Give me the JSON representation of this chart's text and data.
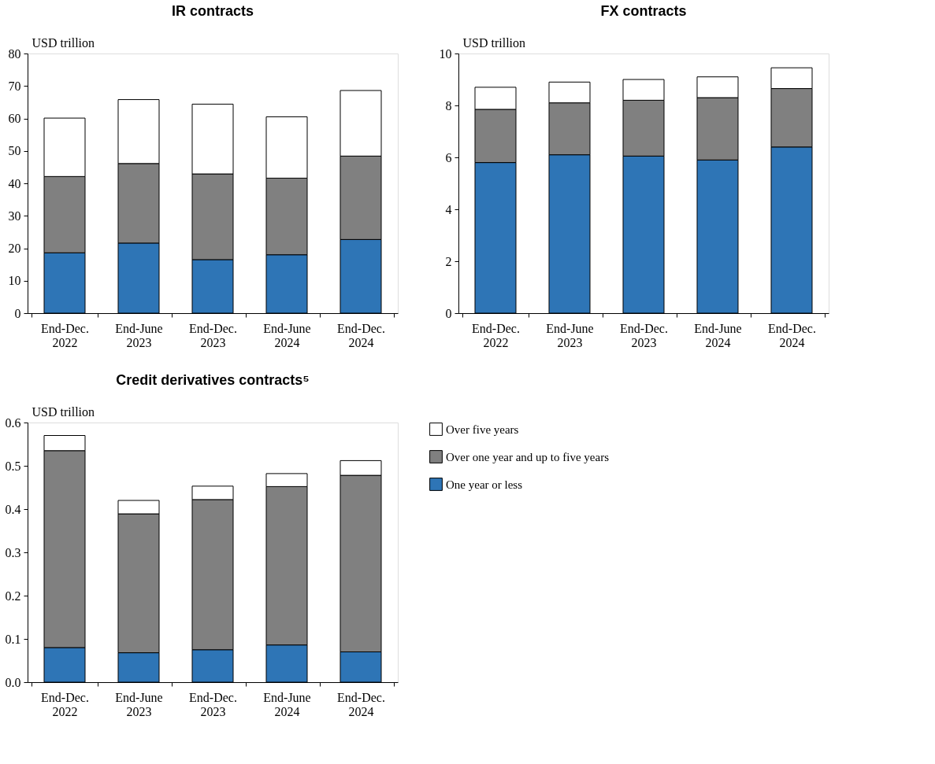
{
  "chart_data": [
    {
      "type": "bar",
      "title": "IR contracts",
      "ylabel": "USD trillion",
      "stacked": true,
      "categories": [
        "End-Dec. 2022",
        "End-June 2023",
        "End-Dec. 2023",
        "End-June 2024",
        "End-Dec. 2024"
      ],
      "ylim": [
        0,
        80
      ],
      "yticks": [
        0,
        10,
        20,
        30,
        40,
        50,
        60,
        70,
        80
      ],
      "series": [
        {
          "color": "#2e75b6",
          "values": [
            18.6,
            21.6,
            16.5,
            18.0,
            22.7
          ]
        },
        {
          "color": "#808080",
          "values": [
            23.5,
            24.5,
            26.4,
            23.6,
            25.7
          ]
        },
        {
          "color": "#ffffff",
          "values": [
            18.0,
            19.7,
            21.5,
            18.9,
            20.2
          ]
        }
      ]
    },
    {
      "type": "bar",
      "title": "FX contracts",
      "ylabel": "USD trillion",
      "stacked": true,
      "categories": [
        "End-Dec. 2022",
        "End-June 2023",
        "End-Dec. 2023",
        "End-June 2024",
        "End-Dec. 2024"
      ],
      "ylim": [
        0,
        10
      ],
      "yticks": [
        0,
        2,
        4,
        6,
        8,
        10
      ],
      "series": [
        {
          "color": "#2e75b6",
          "values": [
            5.8,
            6.1,
            6.05,
            5.9,
            6.4
          ]
        },
        {
          "color": "#808080",
          "values": [
            2.05,
            2.0,
            2.15,
            2.4,
            2.25
          ]
        },
        {
          "color": "#ffffff",
          "values": [
            0.85,
            0.8,
            0.8,
            0.8,
            0.8
          ]
        }
      ]
    },
    {
      "type": "bar",
      "title": "Credit derivatives contracts⁵",
      "ylabel": "USD trillion",
      "stacked": true,
      "legend": "right",
      "categories": [
        "End-Dec. 2022",
        "End-June 2023",
        "End-Dec. 2023",
        "End-June 2024",
        "End-Dec. 2024"
      ],
      "ylim": [
        0,
        0.6
      ],
      "yticks": [
        {
          "value": 0,
          "label": "0.0"
        },
        0.1,
        0.2,
        0.3,
        0.4,
        0.5,
        0.6
      ],
      "series": [
        {
          "name": "One year or less",
          "color": "#2e75b6",
          "values": [
            0.08,
            0.068,
            0.075,
            0.086,
            0.07
          ]
        },
        {
          "name": "Over one year and up to five years",
          "color": "#808080",
          "values": [
            0.455,
            0.321,
            0.347,
            0.366,
            0.408
          ]
        },
        {
          "name": "Over five years",
          "color": "#ffffff",
          "values": [
            0.035,
            0.031,
            0.031,
            0.03,
            0.034
          ]
        }
      ]
    }
  ]
}
